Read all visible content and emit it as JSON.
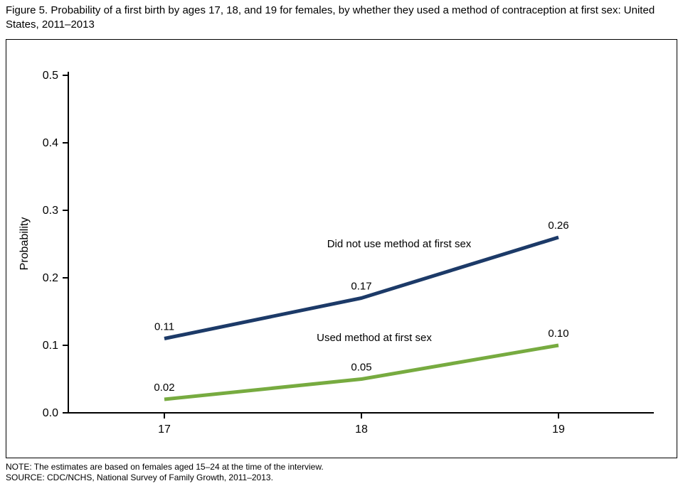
{
  "title": "Figure 5. Probability of a first birth by ages 17, 18, and 19 for females, by whether they used a method of contraception at first sex: United States, 2011–2013",
  "notes": {
    "note": "NOTE: The estimates are based on females aged 15–24 at the time of the interview.",
    "source": "SOURCE: CDC/NCHS, National Survey of Family Growth, 2011–2013."
  },
  "chart_data": {
    "type": "line",
    "title": "",
    "xlabel": "",
    "ylabel": "Probability",
    "x": [
      17,
      18,
      19
    ],
    "x_tick_labels": [
      "17",
      "18",
      "19"
    ],
    "ylim": [
      0.0,
      0.5
    ],
    "y_ticks": [
      0.0,
      0.1,
      0.2,
      0.3,
      0.4,
      0.5
    ],
    "y_tick_labels": [
      "0.0",
      "0.1",
      "0.2",
      "0.3",
      "0.4",
      "0.5"
    ],
    "grid": false,
    "legend_position": "inline-annotations",
    "axis_color": "#000000",
    "series": [
      {
        "name": "Did not use method at first sex",
        "values": [
          0.11,
          0.17,
          0.26
        ],
        "point_labels": [
          "0.11",
          "0.17",
          "0.26"
        ],
        "color": "#1c3a68"
      },
      {
        "name": "Used method at first sex",
        "values": [
          0.02,
          0.05,
          0.1
        ],
        "point_labels": [
          "0.02",
          "0.05",
          "0.10"
        ],
        "color": "#77ab40"
      }
    ]
  }
}
